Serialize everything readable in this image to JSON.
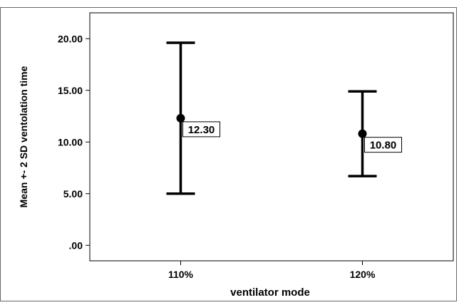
{
  "chart_data": {
    "type": "errorbar",
    "xlabel": "ventilator mode",
    "ylabel": "Mean +- 2 SD ventolation time",
    "ylim": [
      -1.5,
      22.5
    ],
    "yticks": [
      0,
      5,
      10,
      15,
      20
    ],
    "ytick_labels": [
      ".00",
      "5.00",
      "10.00",
      "15.00",
      "20.00"
    ],
    "categories": [
      "110%",
      "120%"
    ],
    "means": [
      12.3,
      10.8
    ],
    "lower": [
      5.0,
      6.7
    ],
    "upper": [
      19.6,
      14.9
    ],
    "mean_labels": [
      "12.30",
      "10.80"
    ],
    "grid": false,
    "colors": {
      "ink": "#000000",
      "frame": "#000000",
      "background": "#ffffff"
    }
  }
}
